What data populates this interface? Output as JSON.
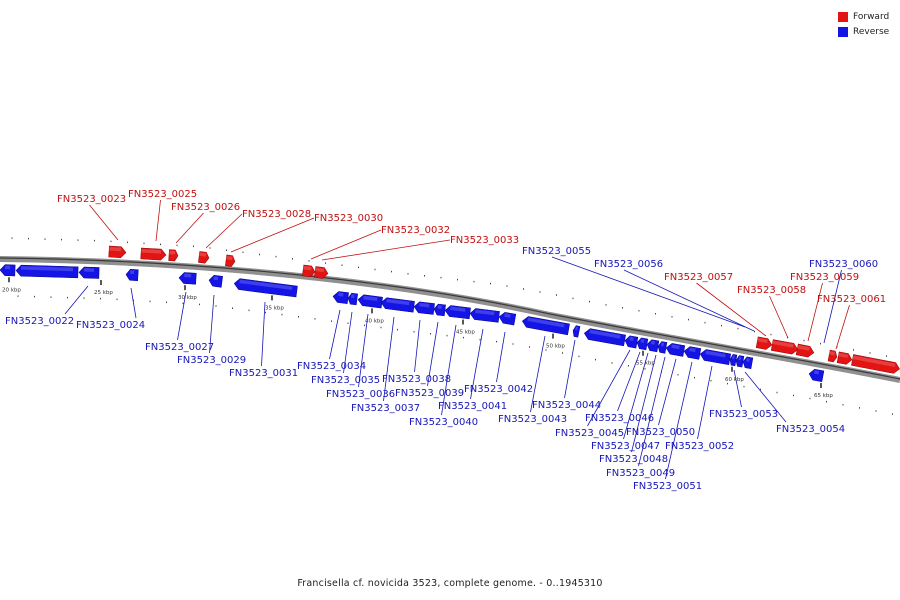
{
  "legend": {
    "forward_label": "Forward",
    "reverse_label": "Reverse",
    "forward_color": "#e21414",
    "reverse_color": "#1414e6"
  },
  "caption": "Francisella cf. novicida 3523, complete genome. - 0..1945310",
  "scale": {
    "ticks": [
      "20 kbp",
      "25 kbp",
      "30 kbp",
      "35 kbp",
      "40 kbp",
      "45 kbp",
      "50 kbp",
      "55 kbp",
      "60 kbp",
      "65 kbp"
    ]
  },
  "genes": {
    "forward": [
      "FN3523_0023",
      "FN3523_0025",
      "FN3523_0026",
      "FN3523_0028",
      "FN3523_0030",
      "FN3523_0032",
      "FN3523_0033",
      "FN3523_0057",
      "FN3523_0058",
      "FN3523_0059",
      "FN3523_0061"
    ],
    "reverse": [
      "FN3523_0022",
      "FN3523_0024",
      "FN3523_0027",
      "FN3523_0029",
      "FN3523_0031",
      "FN3523_0034",
      "FN3523_0035",
      "FN3523_0036",
      "FN3523_0037",
      "FN3523_0038",
      "FN3523_0039",
      "FN3523_0040",
      "FN3523_0041",
      "FN3523_0042",
      "FN3523_0043",
      "FN3523_0044",
      "FN3523_0045",
      "FN3523_0046",
      "FN3523_0047",
      "FN3523_0048",
      "FN3523_0049",
      "FN3523_0050",
      "FN3523_0051",
      "FN3523_0052",
      "FN3523_0053",
      "FN3523_0054",
      "FN3523_0055",
      "FN3523_0056",
      "FN3523_0060"
    ]
  }
}
